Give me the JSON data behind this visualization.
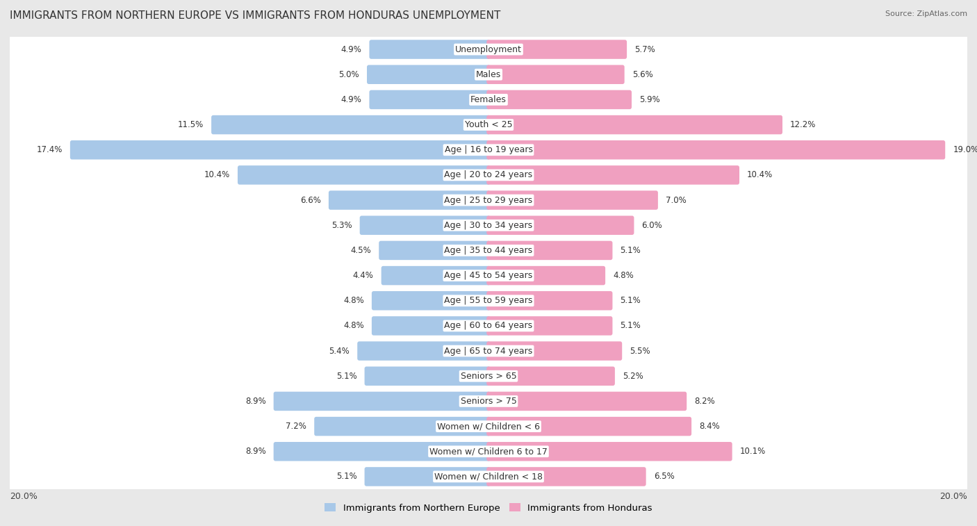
{
  "title": "IMMIGRANTS FROM NORTHERN EUROPE VS IMMIGRANTS FROM HONDURAS UNEMPLOYMENT",
  "source": "Source: ZipAtlas.com",
  "categories": [
    "Unemployment",
    "Males",
    "Females",
    "Youth < 25",
    "Age | 16 to 19 years",
    "Age | 20 to 24 years",
    "Age | 25 to 29 years",
    "Age | 30 to 34 years",
    "Age | 35 to 44 years",
    "Age | 45 to 54 years",
    "Age | 55 to 59 years",
    "Age | 60 to 64 years",
    "Age | 65 to 74 years",
    "Seniors > 65",
    "Seniors > 75",
    "Women w/ Children < 6",
    "Women w/ Children 6 to 17",
    "Women w/ Children < 18"
  ],
  "left_values": [
    4.9,
    5.0,
    4.9,
    11.5,
    17.4,
    10.4,
    6.6,
    5.3,
    4.5,
    4.4,
    4.8,
    4.8,
    5.4,
    5.1,
    8.9,
    7.2,
    8.9,
    5.1
  ],
  "right_values": [
    5.7,
    5.6,
    5.9,
    12.2,
    19.0,
    10.4,
    7.0,
    6.0,
    5.1,
    4.8,
    5.1,
    5.1,
    5.5,
    5.2,
    8.2,
    8.4,
    10.1,
    6.5
  ],
  "left_color": "#a8c8e8",
  "right_color": "#f0a0c0",
  "bar_height": 0.6,
  "xlim": 20.0,
  "axis_label_left": "20.0%",
  "axis_label_right": "20.0%",
  "legend_left": "Immigrants from Northern Europe",
  "legend_right": "Immigrants from Honduras",
  "background_color": "#e8e8e8",
  "row_bg_color": "#ffffff",
  "title_fontsize": 11,
  "label_fontsize": 9,
  "value_fontsize": 8.5,
  "legend_fontsize": 9.5
}
